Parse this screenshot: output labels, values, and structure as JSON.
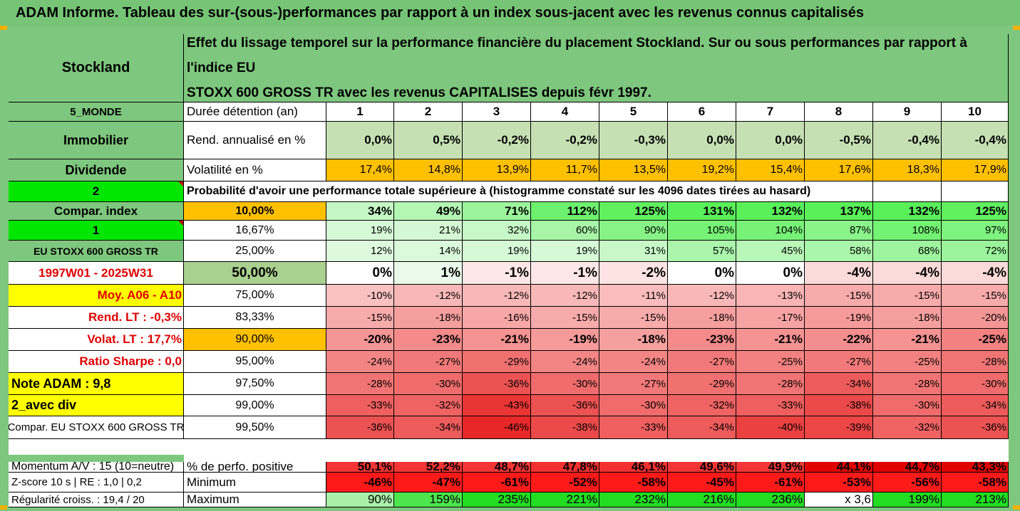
{
  "title": "ADAM Informe. Tableau des sur-(sous-)performances par rapport à un index sous-jacent avec les revenus connus capitalisés",
  "header": {
    "name": "Stockland",
    "desc_line1": "Effet du lissage temporel sur la performance financière du placement Stockland. Sur ou sous performances par rapport à l'indice EU",
    "desc_line2": "STOXX 600 GROSS TR avec les revenus CAPITALISES depuis févr 1997."
  },
  "left": {
    "category": "5_MONDE",
    "sector": "Immobilier",
    "type": "Dividende",
    "value_2": "2",
    "compar_index": "Compar. index",
    "value_1": "1",
    "index_name": "EU STOXX 600 GROSS TR",
    "period": "1997W01 - 2025W31",
    "moy": "Moy. A06 - A10",
    "rend_lt": "Rend. LT :   -0,3%",
    "volat_lt": "Volat. LT :   17,7%",
    "sharpe": "Ratio Sharpe :   0,0",
    "note": "Note ADAM : 9,8",
    "avec_div": "2_avec div",
    "compar_eu": "Compar. EU STOXX 600 GROSS TR",
    "momentum": "Momentum A/V : 15 (10=neutre)",
    "zscore": "Z-score 10 s  |  RE : 1,0  |  0,2",
    "regularite": "Régularité croiss. : 19,4 / 20"
  },
  "labels": {
    "duree": "Durée détention (an)",
    "rend": "Rend. annualisé en %",
    "volat": "Volatilité en %",
    "proba": "Probabilité d'avoir une performance totale supérieure à (histogramme constaté sur les 4096 dates tirées au hasard)",
    "pct_pos": "% de perfo. positive",
    "minimum": "Minimum",
    "maximum": "Maximum"
  },
  "years": [
    "1",
    "2",
    "3",
    "4",
    "5",
    "6",
    "7",
    "8",
    "9",
    "10"
  ],
  "rend": [
    "0,0%",
    "0,5%",
    "-0,2%",
    "-0,2%",
    "-0,3%",
    "0,0%",
    "0,0%",
    "-0,5%",
    "-0,4%",
    "-0,4%"
  ],
  "volat": [
    "17,4%",
    "14,8%",
    "13,9%",
    "11,7%",
    "13,5%",
    "19,2%",
    "15,4%",
    "17,6%",
    "18,3%",
    "17,9%"
  ],
  "quantiles": [
    {
      "label": "10,00%",
      "values": [
        "34%",
        "49%",
        "71%",
        "112%",
        "125%",
        "131%",
        "132%",
        "137%",
        "132%",
        "125%"
      ]
    },
    {
      "label": "16,67%",
      "values": [
        "19%",
        "21%",
        "32%",
        "60%",
        "90%",
        "105%",
        "104%",
        "87%",
        "108%",
        "97%"
      ]
    },
    {
      "label": "25,00%",
      "values": [
        "12%",
        "14%",
        "19%",
        "19%",
        "31%",
        "57%",
        "45%",
        "58%",
        "68%",
        "72%"
      ]
    },
    {
      "label": "50,00%",
      "values": [
        "0%",
        "1%",
        "-1%",
        "-1%",
        "-2%",
        "0%",
        "0%",
        "-4%",
        "-4%",
        "-4%"
      ]
    },
    {
      "label": "75,00%",
      "values": [
        "-10%",
        "-12%",
        "-12%",
        "-12%",
        "-11%",
        "-12%",
        "-13%",
        "-15%",
        "-15%",
        "-15%"
      ]
    },
    {
      "label": "83,33%",
      "values": [
        "-15%",
        "-18%",
        "-16%",
        "-15%",
        "-15%",
        "-18%",
        "-17%",
        "-19%",
        "-18%",
        "-20%"
      ]
    },
    {
      "label": "90,00%",
      "values": [
        "-20%",
        "-23%",
        "-21%",
        "-19%",
        "-18%",
        "-23%",
        "-21%",
        "-22%",
        "-21%",
        "-25%"
      ]
    },
    {
      "label": "95,00%",
      "values": [
        "-24%",
        "-27%",
        "-29%",
        "-24%",
        "-24%",
        "-27%",
        "-25%",
        "-27%",
        "-25%",
        "-28%"
      ]
    },
    {
      "label": "97,50%",
      "values": [
        "-28%",
        "-30%",
        "-36%",
        "-30%",
        "-27%",
        "-29%",
        "-28%",
        "-34%",
        "-28%",
        "-30%"
      ]
    },
    {
      "label": "99,00%",
      "values": [
        "-33%",
        "-32%",
        "-43%",
        "-36%",
        "-30%",
        "-32%",
        "-33%",
        "-38%",
        "-30%",
        "-34%"
      ]
    },
    {
      "label": "99,50%",
      "values": [
        "-36%",
        "-34%",
        "-46%",
        "-38%",
        "-33%",
        "-34%",
        "-40%",
        "-39%",
        "-32%",
        "-36%"
      ]
    }
  ],
  "pct_pos": [
    "50,1%",
    "52,2%",
    "48,7%",
    "47,8%",
    "46,1%",
    "49,6%",
    "49,9%",
    "44,1%",
    "44,7%",
    "43,3%"
  ],
  "minimum": [
    "-46%",
    "-47%",
    "-61%",
    "-52%",
    "-58%",
    "-45%",
    "-61%",
    "-53%",
    "-56%",
    "-58%"
  ],
  "maximum": [
    "90%",
    "159%",
    "235%",
    "221%",
    "232%",
    "216%",
    "236%",
    "x 3,6",
    "199%",
    "213%"
  ],
  "colors": {
    "green_header": "#7ec77e",
    "bright_green": "#00e600",
    "yellow": "#ffff00",
    "orange": "#ffc000",
    "red_text": "#e00000",
    "red_cell": "#ff1a1a",
    "rend_bg": "#c6e0b4"
  }
}
